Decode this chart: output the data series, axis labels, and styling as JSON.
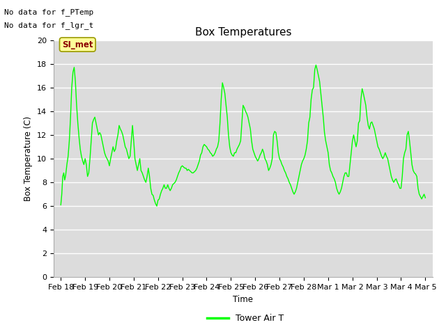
{
  "title": "Box Temperatures",
  "ylabel": "Box Temperature (C)",
  "xlabel": "Time",
  "text_no_data_1": "No data for f_PTemp",
  "text_no_data_2": "No data for f_lgr_t",
  "si_met_label": "SI_met",
  "legend_label": "Tower Air T",
  "ylim": [
    0,
    20
  ],
  "yticks": [
    0,
    2,
    4,
    6,
    8,
    10,
    12,
    14,
    16,
    18,
    20
  ],
  "bg_color": "#dcdcdc",
  "line_color": "#00ff00",
  "grid_color": "#ffffff",
  "si_met_bg": "#ffff99",
  "si_met_border": "#cccc00",
  "si_met_text_color": "#8b0000",
  "x_dates": [
    "Feb 18",
    "Feb 19",
    "Feb 20",
    "Feb 21",
    "Feb 22",
    "Feb 23",
    "Feb 24",
    "Feb 25",
    "Feb 26",
    "Feb 27",
    "Feb 28",
    "Mar 1",
    "Mar 2",
    "Mar 3",
    "Mar 4",
    "Mar 5"
  ],
  "data_x": [
    0.0,
    0.04,
    0.08,
    0.12,
    0.16,
    0.2,
    0.25,
    0.3,
    0.35,
    0.4,
    0.45,
    0.5,
    0.55,
    0.6,
    0.65,
    0.7,
    0.75,
    0.8,
    0.85,
    0.9,
    0.95,
    1.0,
    1.05,
    1.1,
    1.15,
    1.2,
    1.25,
    1.3,
    1.35,
    1.4,
    1.45,
    1.5,
    1.55,
    1.6,
    1.65,
    1.7,
    1.75,
    1.8,
    1.85,
    1.9,
    1.95,
    2.0,
    2.05,
    2.1,
    2.15,
    2.2,
    2.25,
    2.3,
    2.35,
    2.4,
    2.45,
    2.5,
    2.55,
    2.6,
    2.65,
    2.7,
    2.75,
    2.8,
    2.85,
    2.9,
    2.95,
    3.0,
    3.05,
    3.1,
    3.15,
    3.2,
    3.25,
    3.3,
    3.35,
    3.4,
    3.45,
    3.5,
    3.55,
    3.6,
    3.65,
    3.7,
    3.75,
    3.8,
    3.85,
    3.9,
    3.95,
    4.0,
    4.05,
    4.1,
    4.15,
    4.2,
    4.25,
    4.3,
    4.35,
    4.4,
    4.45,
    4.5,
    4.55,
    4.6,
    4.65,
    4.7,
    4.75,
    4.8,
    4.85,
    4.9,
    4.95,
    5.0,
    5.05,
    5.1,
    5.15,
    5.2,
    5.25,
    5.3,
    5.35,
    5.4,
    5.45,
    5.5,
    5.55,
    5.6,
    5.65,
    5.7,
    5.75,
    5.8,
    5.85,
    5.9,
    5.95,
    6.0,
    6.05,
    6.1,
    6.15,
    6.2,
    6.25,
    6.3,
    6.35,
    6.4,
    6.45,
    6.5,
    6.55,
    6.6,
    6.65,
    6.7,
    6.75,
    6.8,
    6.85,
    6.9,
    6.95,
    7.0,
    7.05,
    7.1,
    7.15,
    7.2,
    7.25,
    7.3,
    7.35,
    7.4,
    7.45,
    7.5,
    7.55,
    7.6,
    7.65,
    7.7,
    7.75,
    7.8,
    7.85,
    7.9,
    7.95,
    8.0,
    8.05,
    8.1,
    8.15,
    8.2,
    8.25,
    8.3,
    8.35,
    8.4,
    8.45,
    8.5,
    8.55,
    8.6,
    8.65,
    8.7,
    8.75,
    8.8,
    8.85,
    8.9,
    8.95,
    9.0,
    9.05,
    9.1,
    9.15,
    9.2,
    9.25,
    9.3,
    9.35,
    9.4,
    9.45,
    9.5,
    9.55,
    9.6,
    9.65,
    9.7,
    9.75,
    9.8,
    9.85,
    9.9,
    9.95,
    10.0,
    10.05,
    10.1,
    10.15,
    10.2,
    10.25,
    10.3,
    10.35,
    10.4,
    10.45,
    10.5,
    10.55,
    10.6,
    10.65,
    10.7,
    10.75,
    10.8,
    10.85,
    10.9,
    10.95,
    11.0,
    11.05,
    11.1,
    11.15,
    11.2,
    11.25,
    11.3,
    11.35,
    11.4,
    11.45,
    11.5,
    11.55,
    11.6,
    11.65,
    11.7,
    11.75,
    11.8,
    11.85,
    11.9,
    11.95,
    12.0,
    12.05,
    12.1,
    12.15,
    12.2,
    12.25,
    12.3,
    12.35,
    12.4,
    12.45,
    12.5,
    12.55,
    12.6,
    12.65,
    12.7,
    12.75,
    12.8,
    12.85,
    12.9,
    12.95,
    13.0,
    13.05,
    13.1,
    13.15,
    13.2,
    13.25,
    13.3,
    13.35,
    13.4,
    13.45,
    13.5,
    13.55,
    13.6,
    13.65,
    13.7,
    13.75,
    13.8,
    13.85,
    13.9,
    13.95,
    14.0,
    14.05,
    14.1,
    14.15,
    14.2,
    14.25,
    14.3,
    14.35,
    14.4,
    14.45,
    14.5,
    14.55,
    14.6,
    14.65,
    14.7,
    14.75,
    14.8,
    14.85,
    14.9,
    14.95,
    15.0
  ],
  "data_y": [
    6.1,
    7.0,
    8.5,
    8.8,
    8.2,
    8.6,
    9.5,
    10.2,
    11.5,
    13.5,
    16.0,
    17.3,
    17.7,
    16.5,
    14.5,
    13.0,
    11.8,
    10.8,
    10.2,
    9.8,
    9.5,
    10.0,
    9.5,
    8.5,
    8.8,
    10.0,
    11.5,
    13.0,
    13.3,
    13.5,
    13.0,
    12.5,
    12.0,
    12.2,
    12.0,
    11.5,
    11.0,
    10.5,
    10.2,
    10.0,
    9.8,
    9.4,
    10.0,
    10.5,
    11.0,
    10.6,
    10.8,
    11.5,
    12.0,
    12.8,
    12.5,
    12.3,
    12.0,
    11.5,
    11.0,
    10.8,
    10.4,
    10.0,
    10.2,
    11.5,
    12.8,
    11.5,
    10.0,
    9.5,
    9.0,
    9.5,
    10.0,
    9.0,
    8.8,
    8.5,
    8.2,
    8.0,
    8.5,
    9.2,
    8.5,
    7.5,
    7.0,
    6.9,
    6.5,
    6.2,
    6.0,
    6.5,
    6.6,
    7.0,
    7.3,
    7.5,
    7.8,
    7.5,
    7.5,
    7.8,
    7.5,
    7.3,
    7.5,
    7.8,
    7.9,
    8.0,
    8.2,
    8.5,
    8.8,
    9.0,
    9.3,
    9.4,
    9.3,
    9.2,
    9.2,
    9.0,
    9.1,
    9.0,
    8.9,
    8.8,
    8.8,
    8.9,
    9.0,
    9.2,
    9.5,
    9.8,
    10.3,
    10.5,
    11.0,
    11.2,
    11.1,
    11.0,
    10.8,
    10.7,
    10.5,
    10.4,
    10.2,
    10.3,
    10.5,
    10.8,
    11.0,
    11.5,
    13.0,
    15.0,
    16.4,
    16.0,
    15.5,
    14.5,
    13.5,
    12.0,
    11.0,
    10.5,
    10.3,
    10.2,
    10.5,
    10.5,
    10.8,
    11.0,
    11.2,
    11.5,
    13.0,
    14.5,
    14.3,
    14.0,
    13.8,
    13.5,
    13.0,
    12.5,
    11.5,
    10.8,
    10.5,
    10.2,
    10.0,
    9.8,
    10.0,
    10.3,
    10.5,
    10.8,
    10.5,
    10.0,
    9.8,
    9.5,
    9.0,
    9.2,
    9.5,
    10.0,
    12.0,
    12.3,
    12.2,
    11.5,
    10.5,
    10.0,
    9.8,
    9.5,
    9.3,
    9.0,
    8.8,
    8.5,
    8.3,
    8.0,
    7.8,
    7.5,
    7.2,
    7.0,
    7.2,
    7.5,
    8.0,
    8.5,
    9.0,
    9.5,
    9.8,
    10.0,
    10.3,
    10.8,
    11.5,
    13.0,
    13.5,
    15.0,
    15.8,
    16.0,
    17.5,
    17.9,
    17.5,
    17.0,
    16.5,
    15.5,
    14.5,
    13.5,
    12.2,
    11.5,
    11.0,
    10.5,
    9.5,
    9.0,
    8.8,
    8.5,
    8.3,
    8.0,
    7.5,
    7.2,
    7.0,
    7.2,
    7.5,
    8.0,
    8.5,
    8.8,
    8.8,
    8.5,
    8.5,
    9.5,
    10.5,
    11.5,
    12.0,
    11.5,
    11.0,
    11.5,
    13.0,
    13.2,
    15.0,
    15.9,
    15.5,
    15.0,
    14.5,
    13.5,
    12.8,
    12.5,
    13.0,
    13.1,
    12.8,
    12.5,
    12.0,
    11.5,
    11.0,
    10.8,
    10.5,
    10.2,
    10.0,
    10.2,
    10.5,
    10.2,
    10.0,
    9.5,
    9.0,
    8.5,
    8.2,
    8.0,
    8.2,
    8.3,
    8.0,
    7.8,
    7.5,
    7.5,
    8.5,
    10.0,
    10.5,
    10.8,
    12.0,
    12.3,
    11.5,
    10.5,
    9.5,
    9.0,
    8.8,
    8.7,
    8.5,
    7.5,
    7.0,
    6.8,
    6.6,
    6.8,
    7.0,
    6.7
  ]
}
